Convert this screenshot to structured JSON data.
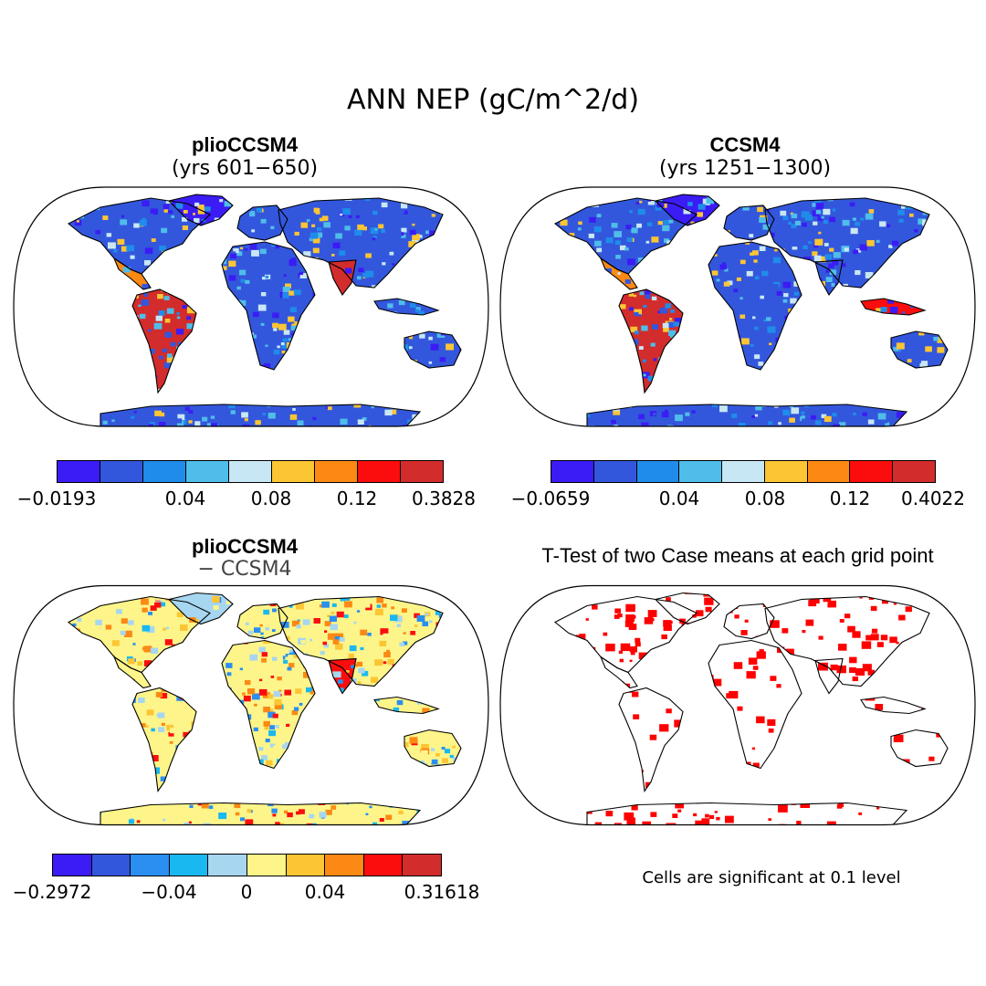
{
  "figure": {
    "title": "ANN NEP (gC/m^2/d)"
  },
  "panels": {
    "top_left": {
      "title": "plioCCSM4",
      "subtitle": "(yrs 601−650)",
      "map_name": "pliocene-nep-map",
      "colorbar": {
        "colors": [
          "#3b1cf5",
          "#3357dc",
          "#1f8ceb",
          "#4fbde9",
          "#c8e7f5",
          "#fcc534",
          "#fb8914",
          "#fb0d0d",
          "#d22c2c"
        ],
        "tick_labels": [
          "−0.0193",
          "0.04",
          "0.08",
          "0.12",
          "0.3828"
        ]
      }
    },
    "top_right": {
      "title": "CCSM4",
      "subtitle": "(yrs 1251−1300)",
      "map_name": "ccsm4-nep-map",
      "colorbar": {
        "colors": [
          "#3b1cf5",
          "#3357dc",
          "#1f8ceb",
          "#4fbde9",
          "#c8e7f5",
          "#fcc534",
          "#fb8914",
          "#fb0d0d",
          "#d22c2c"
        ],
        "tick_labels": [
          "−0.0659",
          "0.04",
          "0.08",
          "0.12",
          "0.4022"
        ]
      }
    },
    "bottom_left": {
      "title": "plioCCSM4",
      "subtitle": "− CCSM4",
      "map_name": "difference-map",
      "colorbar": {
        "colors": [
          "#3b1cf5",
          "#3357dc",
          "#2a8ff0",
          "#1ab8f0",
          "#a7d6f0",
          "#fdf58a",
          "#fcc534",
          "#fb8914",
          "#fb0d0d",
          "#d22c2c"
        ],
        "tick_labels": [
          "−0.2972",
          "−0.04",
          "0",
          "0.04",
          "0.31618"
        ]
      }
    },
    "bottom_right": {
      "title": "T-Test of two Case means at each grid point",
      "map_name": "ttest-significance-map",
      "note": "Cells are significant at 0.1 level"
    }
  },
  "style": {
    "land_outline": "#000000",
    "ocean": "#ffffff",
    "significant_color": "#ff0000"
  }
}
